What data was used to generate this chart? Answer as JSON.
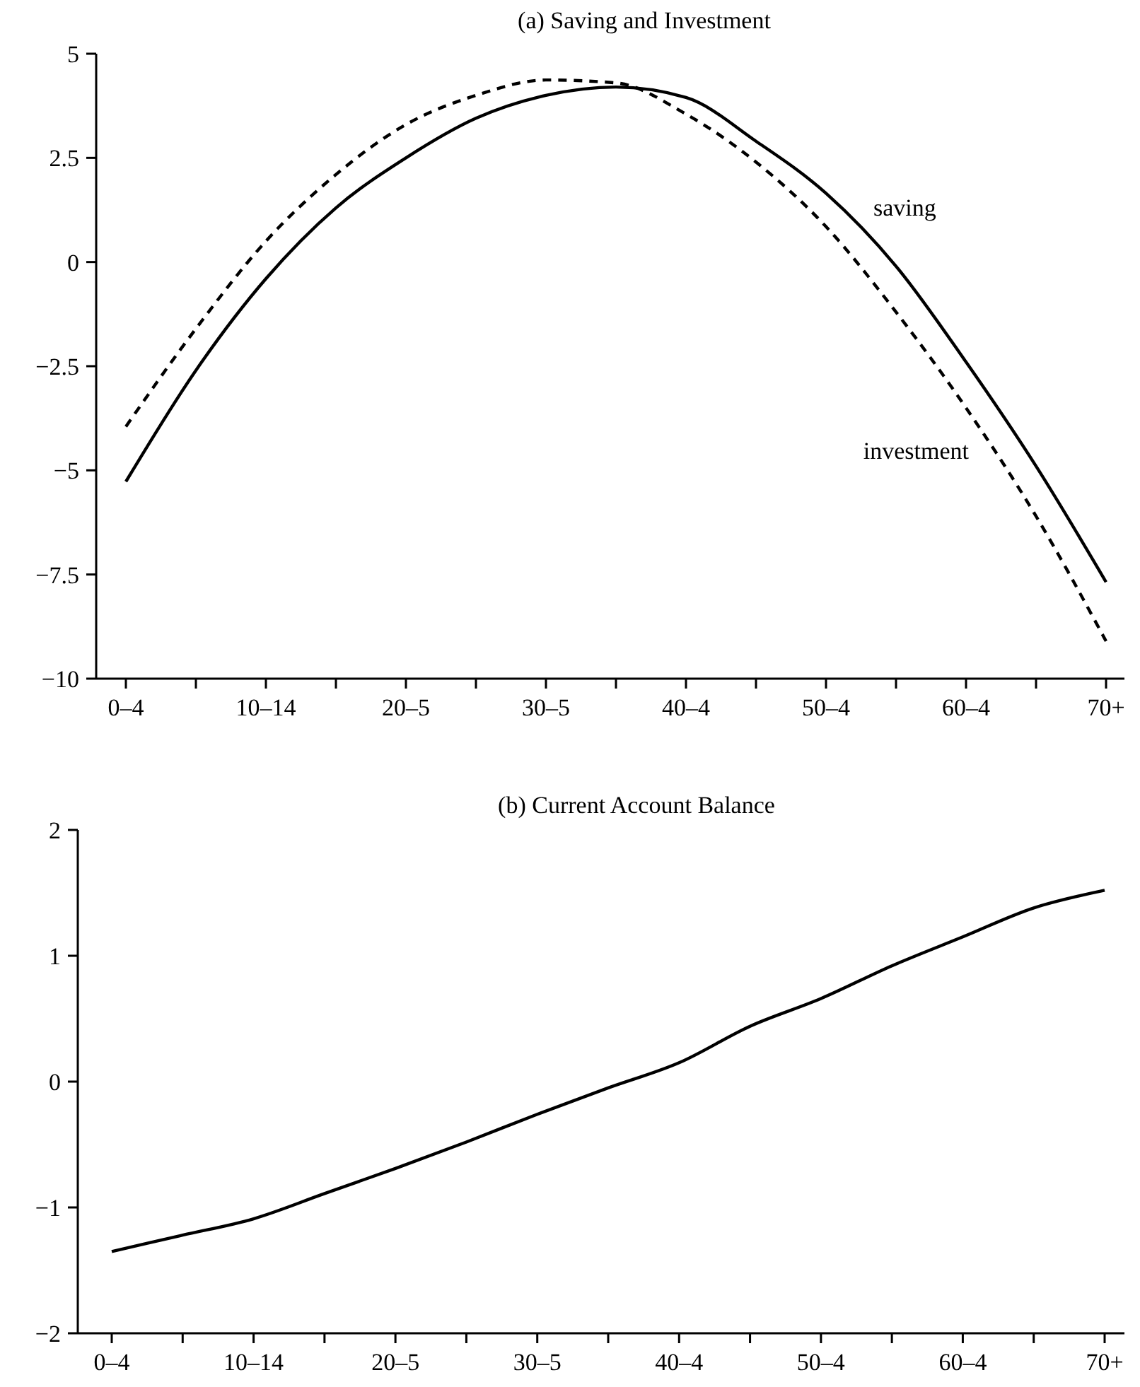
{
  "chart_data": [
    {
      "type": "line",
      "title": "(a) Saving and Investment",
      "categories": [
        "0–4",
        null,
        "10–14",
        null,
        "20–5",
        null,
        "30–5",
        null,
        "40–4",
        null,
        "50–4",
        null,
        "60–4",
        null,
        "70+"
      ],
      "series": [
        {
          "name": "saving",
          "color": "#000000",
          "line_style": "solid",
          "values": [
            -5.27,
            -2.6,
            -0.4,
            1.3,
            2.5,
            3.45,
            4.0,
            4.2,
            3.95,
            2.9,
            1.65,
            -0.1,
            -2.4,
            -4.9,
            -7.68
          ]
        },
        {
          "name": "investment",
          "color": "#000000",
          "line_style": "dashed",
          "values": [
            -3.95,
            -1.6,
            0.5,
            2.1,
            3.3,
            4.0,
            4.37,
            4.3,
            3.55,
            2.4,
            0.85,
            -1.2,
            -3.5,
            -6.1,
            -9.1
          ]
        }
      ],
      "ylim": [
        -10,
        5
      ],
      "yticks": [
        {
          "value": -10,
          "label": "−10"
        },
        {
          "value": -7.5,
          "label": "−7.5"
        },
        {
          "value": -5,
          "label": "−5"
        },
        {
          "value": -2.5,
          "label": "−2.5"
        },
        0,
        2.5,
        5
      ],
      "grid": false
    },
    {
      "type": "line",
      "title": "(b) Current Account Balance",
      "categories": [
        "0–4",
        null,
        "10–14",
        null,
        "20–5",
        null,
        "30–5",
        null,
        "40–4",
        null,
        "50–4",
        null,
        "60–4",
        null,
        "70+"
      ],
      "series": [
        {
          "color": "#000000",
          "line_style": "solid",
          "values": [
            -1.35,
            -1.22,
            -1.09,
            -0.89,
            -0.69,
            -0.48,
            -0.26,
            -0.05,
            0.15,
            0.44,
            0.66,
            0.92,
            1.15,
            1.38,
            1.52
          ]
        }
      ],
      "ylim": [
        -2,
        2
      ],
      "yticks": [
        {
          "value": -2,
          "label": "−2"
        },
        {
          "value": -1,
          "label": "−1"
        },
        0,
        1,
        2
      ],
      "grid": false
    }
  ]
}
